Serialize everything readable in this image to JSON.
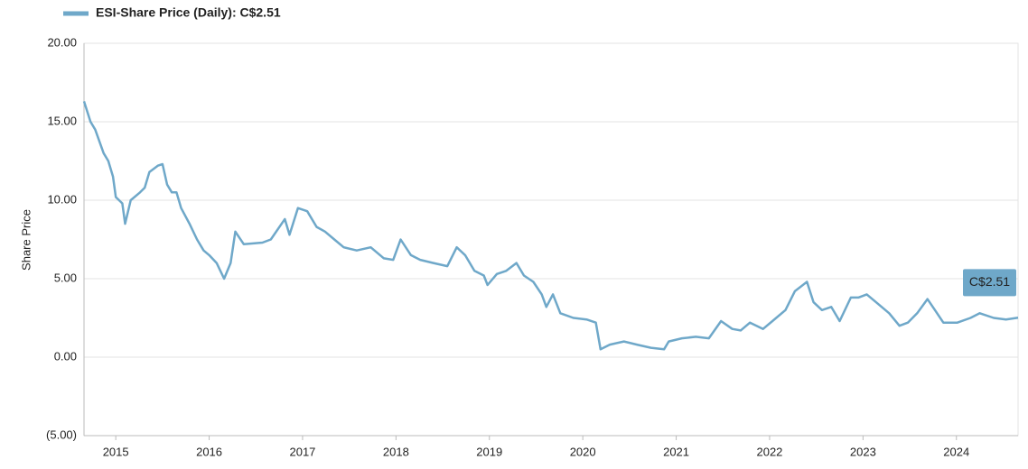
{
  "chart_data": {
    "type": "line",
    "y_label": "Share Price",
    "annotation": "C$2.51",
    "x": [
      2014.66,
      2014.73,
      2014.78,
      2014.87,
      2014.92,
      2014.97,
      2015.0,
      2015.07,
      2015.1,
      2015.16,
      2015.26,
      2015.31,
      2015.36,
      2015.45,
      2015.5,
      2015.55,
      2015.6,
      2015.65,
      2015.7,
      2015.79,
      2015.87,
      2015.94,
      2016.0,
      2016.08,
      2016.16,
      2016.23,
      2016.28,
      2016.37,
      2016.57,
      2016.66,
      2016.81,
      2016.86,
      2016.95,
      2017.05,
      2017.15,
      2017.24,
      2017.34,
      2017.44,
      2017.58,
      2017.73,
      2017.87,
      2017.97,
      2018.05,
      2018.16,
      2018.26,
      2018.4,
      2018.55,
      2018.65,
      2018.74,
      2018.84,
      2018.94,
      2018.98,
      2019.08,
      2019.18,
      2019.29,
      2019.37,
      2019.47,
      2019.56,
      2019.61,
      2019.68,
      2019.76,
      2019.9,
      2020.04,
      2020.14,
      2020.19,
      2020.29,
      2020.44,
      2020.58,
      2020.73,
      2020.87,
      2020.92,
      2021.06,
      2021.21,
      2021.35,
      2021.48,
      2021.6,
      2021.69,
      2021.79,
      2021.93,
      2022.03,
      2022.17,
      2022.27,
      2022.4,
      2022.47,
      2022.56,
      2022.66,
      2022.75,
      2022.87,
      2022.95,
      2023.04,
      2023.14,
      2023.28,
      2023.39,
      2023.48,
      2023.58,
      2023.69,
      2023.77,
      2023.86,
      2024.01,
      2024.15,
      2024.25,
      2024.4,
      2024.53,
      2024.66
    ],
    "series": [
      {
        "name": "ESI-Share Price (Daily): C$2.51",
        "color": "#6fa8c9",
        "values": [
          16.3,
          15.0,
          14.5,
          13.0,
          12.5,
          11.5,
          10.2,
          9.8,
          8.5,
          10.0,
          10.5,
          10.8,
          11.8,
          12.2,
          12.3,
          11.0,
          10.5,
          10.5,
          9.5,
          8.5,
          7.5,
          6.8,
          6.5,
          6.0,
          5.0,
          6.0,
          8.0,
          7.2,
          7.3,
          7.5,
          8.8,
          7.8,
          9.5,
          9.3,
          8.3,
          8.0,
          7.5,
          7.0,
          6.8,
          7.0,
          6.3,
          6.2,
          7.5,
          6.5,
          6.2,
          6.0,
          5.8,
          7.0,
          6.5,
          5.5,
          5.2,
          4.6,
          5.3,
          5.5,
          6.0,
          5.2,
          4.8,
          4.0,
          3.2,
          4.0,
          2.8,
          2.5,
          2.4,
          2.2,
          0.5,
          0.8,
          1.0,
          0.8,
          0.6,
          0.5,
          1.0,
          1.2,
          1.3,
          1.2,
          2.3,
          1.8,
          1.7,
          2.2,
          1.8,
          2.3,
          3.0,
          4.2,
          4.8,
          3.5,
          3.0,
          3.2,
          2.3,
          3.8,
          3.8,
          4.0,
          3.5,
          2.8,
          2.0,
          2.2,
          2.8,
          3.7,
          3.0,
          2.2,
          2.2,
          2.5,
          2.8,
          2.5,
          2.4,
          2.51
        ]
      }
    ],
    "xlim": [
      2014.66,
      2024.66
    ],
    "xticks": [
      2015,
      2016,
      2017,
      2018,
      2019,
      2020,
      2021,
      2022,
      2023,
      2024
    ],
    "ylim": [
      -5,
      20
    ],
    "yticks": [
      {
        "value": -5,
        "label": "(5.00)"
      },
      {
        "value": 0,
        "label": "0.00"
      },
      {
        "value": 5,
        "label": "5.00"
      },
      {
        "value": 10,
        "label": "10.00"
      },
      {
        "value": 15,
        "label": "15.00"
      },
      {
        "value": 20,
        "label": "20.00"
      }
    ],
    "grid": true
  }
}
